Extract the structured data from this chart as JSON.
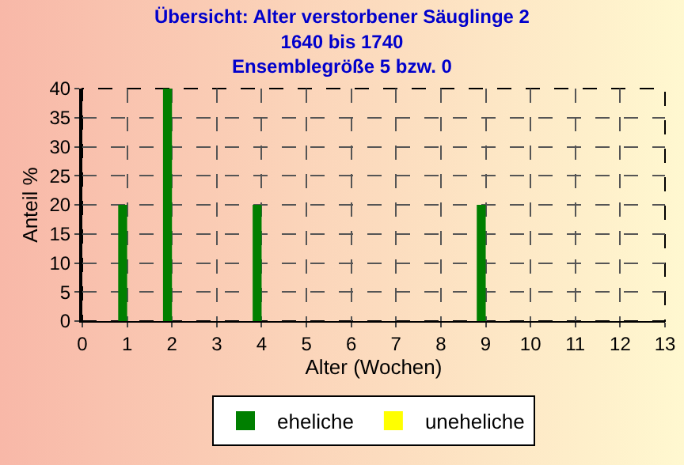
{
  "chart_data": {
    "type": "bar",
    "title": "Übersicht: Alter verstorbener Säuglinge 2\n1640 bis 1740\nEnsemblegröße 5 bzw. 0",
    "xlabel": "Alter (Wochen)",
    "ylabel": "Anteil %",
    "x": [
      0,
      1,
      2,
      3,
      4,
      5,
      6,
      7,
      8,
      9,
      10,
      11,
      12
    ],
    "series": [
      {
        "name": "eheliche",
        "color": "#007f00",
        "values": [
          0,
          20,
          40,
          0,
          20,
          0,
          0,
          0,
          0,
          20,
          0,
          0,
          0
        ]
      },
      {
        "name": "uneheliche",
        "color": "#ffff00",
        "values": [
          0,
          0,
          0,
          0,
          0,
          0,
          0,
          0,
          0,
          0,
          0,
          0,
          0
        ]
      }
    ],
    "xlim": [
      0,
      13
    ],
    "xticks": [
      0,
      1,
      2,
      3,
      4,
      5,
      6,
      7,
      8,
      9,
      10,
      11,
      12,
      13
    ],
    "ylim": [
      0,
      40
    ],
    "yticks": [
      0,
      5,
      10,
      15,
      20,
      25,
      30,
      35,
      40
    ],
    "grid": true,
    "legend": "bottom"
  }
}
